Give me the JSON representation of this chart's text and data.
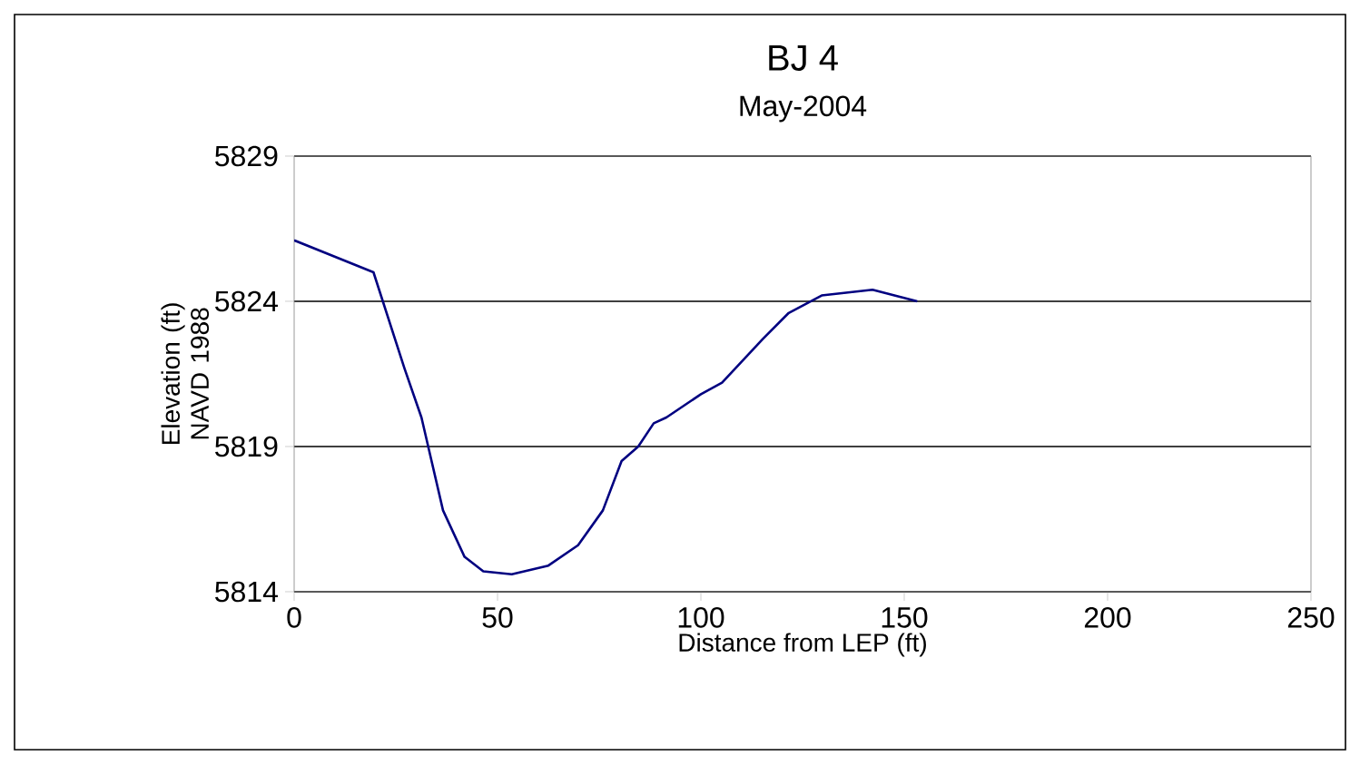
{
  "chart_data": {
    "type": "line",
    "title": "BJ 4",
    "subtitle": "May-2004",
    "xlabel": "Distance from LEP (ft)",
    "ylabel": "Elevation (ft) NAVD 1988",
    "x": [
      0,
      19.5,
      27.1,
      31.3,
      36.6,
      41.9,
      46.5,
      53.5,
      62.5,
      69.8,
      75.9,
      80.5,
      84.6,
      88.4,
      91.5,
      100,
      105.2,
      115.2,
      121.6,
      129.7,
      142.2,
      153.2
    ],
    "series": [
      {
        "color": "#000080",
        "values": [
          5826.1,
          5825,
          5821.7,
          5820,
          5816.8,
          5815.2,
          5814.7,
          5814.6,
          5814.9,
          5815.6,
          5816.8,
          5818.5,
          5819,
          5819.8,
          5820,
          5820.8,
          5821.2,
          5822.7,
          5823.6,
          5824.2,
          5824.4,
          5824
        ]
      }
    ],
    "xlim": [
      0,
      250
    ],
    "ylim": [
      5814,
      5829
    ],
    "xticks": [
      0,
      50,
      100,
      150,
      200,
      250
    ],
    "yticks": [
      5814,
      5819,
      5824,
      5829
    ],
    "grid": "y",
    "marker": "none",
    "line_style": "solid"
  }
}
